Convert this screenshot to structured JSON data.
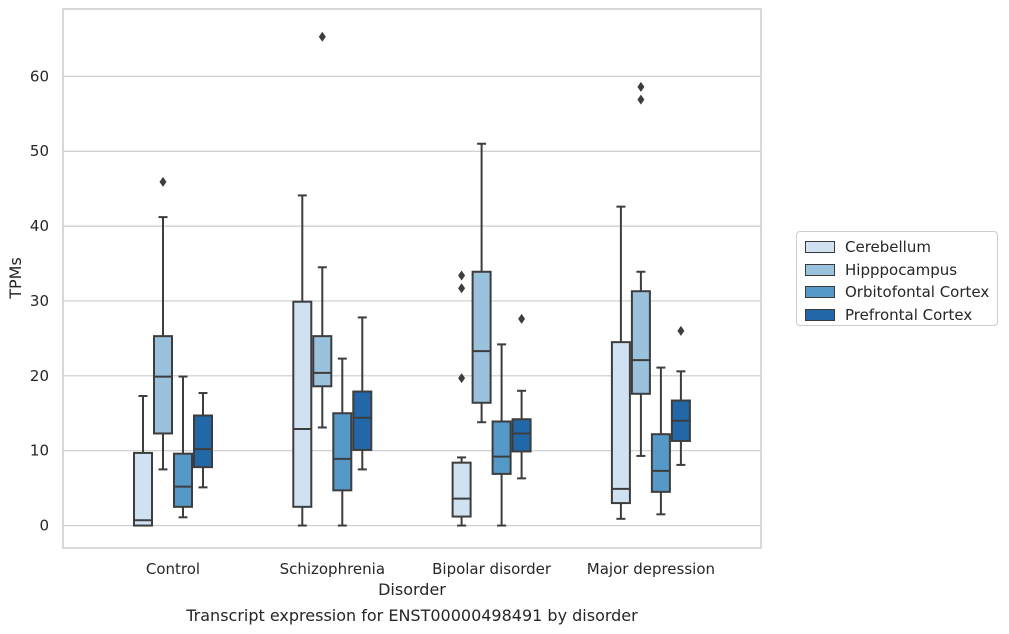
{
  "chart_data": {
    "type": "box",
    "title": "",
    "caption": "Transcript expression for ENST00000498491 by disorder",
    "xlabel": "Disorder",
    "ylabel": "TPMs",
    "ylim": [
      -3,
      69
    ],
    "yticks": [
      0,
      10,
      20,
      30,
      40,
      50,
      60
    ],
    "grid": "horizontal",
    "legend_position": "right",
    "categories": [
      "Control",
      "Schizophrenia",
      "Bipolar disorder",
      "Major depression"
    ],
    "series": [
      {
        "name": "Cerebellum",
        "color": "#d0e1f2",
        "boxes": [
          {
            "whisker_low": 0,
            "q1": 0,
            "median": 0.7,
            "q3": 9.7,
            "whisker_high": 17.3,
            "outliers": []
          },
          {
            "whisker_low": 0,
            "q1": 2.5,
            "median": 12.9,
            "q3": 29.9,
            "whisker_high": 44.1,
            "outliers": []
          },
          {
            "whisker_low": 0,
            "q1": 1.2,
            "median": 3.6,
            "q3": 8.4,
            "whisker_high": 9.1,
            "outliers": [
              19.7,
              31.7,
              33.4
            ]
          },
          {
            "whisker_low": 0.9,
            "q1": 3.0,
            "median": 4.9,
            "q3": 24.5,
            "whisker_high": 42.6,
            "outliers": []
          }
        ]
      },
      {
        "name": "Hipppocampus",
        "color": "#9ac2dc",
        "boxes": [
          {
            "whisker_low": 7.5,
            "q1": 12.3,
            "median": 19.9,
            "q3": 25.3,
            "whisker_high": 41.2,
            "outliers": [
              45.9
            ]
          },
          {
            "whisker_low": 13.1,
            "q1": 18.6,
            "median": 20.4,
            "q3": 25.3,
            "whisker_high": 34.5,
            "outliers": [
              65.3
            ]
          },
          {
            "whisker_low": 13.8,
            "q1": 16.4,
            "median": 23.3,
            "q3": 33.9,
            "whisker_high": 51.0,
            "outliers": []
          },
          {
            "whisker_low": 9.3,
            "q1": 17.6,
            "median": 22.1,
            "q3": 31.3,
            "whisker_high": 33.9,
            "outliers": [
              56.9,
              58.6
            ]
          }
        ]
      },
      {
        "name": "Orbitofontal Cortex",
        "color": "#5599c8",
        "boxes": [
          {
            "whisker_low": 1.1,
            "q1": 2.5,
            "median": 5.2,
            "q3": 9.6,
            "whisker_high": 19.9,
            "outliers": []
          },
          {
            "whisker_low": 0,
            "q1": 4.7,
            "median": 8.9,
            "q3": 15.0,
            "whisker_high": 22.3,
            "outliers": []
          },
          {
            "whisker_low": 0,
            "q1": 6.9,
            "median": 9.2,
            "q3": 13.9,
            "whisker_high": 24.2,
            "outliers": []
          },
          {
            "whisker_low": 1.5,
            "q1": 4.5,
            "median": 7.3,
            "q3": 12.2,
            "whisker_high": 21.1,
            "outliers": []
          }
        ]
      },
      {
        "name": "Prefrontal Cortex",
        "color": "#2268a8",
        "boxes": [
          {
            "whisker_low": 5.1,
            "q1": 7.8,
            "median": 10.2,
            "q3": 14.7,
            "whisker_high": 17.7,
            "outliers": []
          },
          {
            "whisker_low": 7.5,
            "q1": 10.1,
            "median": 14.4,
            "q3": 17.9,
            "whisker_high": 27.8,
            "outliers": []
          },
          {
            "whisker_low": 6.3,
            "q1": 9.9,
            "median": 12.3,
            "q3": 14.2,
            "whisker_high": 18.0,
            "outliers": [
              27.6
            ]
          },
          {
            "whisker_low": 8.1,
            "q1": 11.3,
            "median": 14.0,
            "q3": 16.7,
            "whisker_high": 20.6,
            "outliers": [
              26.0
            ]
          }
        ]
      }
    ]
  }
}
